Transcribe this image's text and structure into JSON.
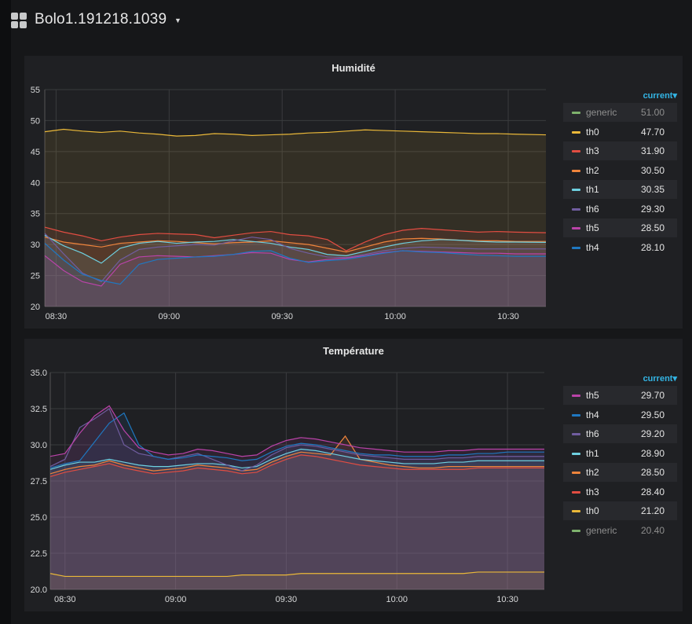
{
  "dashboard": {
    "title": "Bolo1.191218.1039"
  },
  "panels": [
    {
      "title": "Humidité",
      "legend_sort_label": "current",
      "legend": [
        {
          "name": "generic",
          "value": "51.00",
          "color": "#7eb26d"
        },
        {
          "name": "th0",
          "value": "47.70",
          "color": "#eab839"
        },
        {
          "name": "th3",
          "value": "31.90",
          "color": "#e24d42"
        },
        {
          "name": "th2",
          "value": "30.50",
          "color": "#ef843c"
        },
        {
          "name": "th1",
          "value": "30.35",
          "color": "#6ed0e0"
        },
        {
          "name": "th6",
          "value": "29.30",
          "color": "#705da0"
        },
        {
          "name": "th5",
          "value": "28.50",
          "color": "#ba43a9"
        },
        {
          "name": "th4",
          "value": "28.10",
          "color": "#1f78c1"
        }
      ]
    },
    {
      "title": "Température",
      "legend_sort_label": "current",
      "legend": [
        {
          "name": "th5",
          "value": "29.70",
          "color": "#ba43a9"
        },
        {
          "name": "th4",
          "value": "29.50",
          "color": "#1f78c1"
        },
        {
          "name": "th6",
          "value": "29.20",
          "color": "#705da0"
        },
        {
          "name": "th1",
          "value": "28.90",
          "color": "#6ed0e0"
        },
        {
          "name": "th2",
          "value": "28.50",
          "color": "#ef843c"
        },
        {
          "name": "th3",
          "value": "28.40",
          "color": "#e24d42"
        },
        {
          "name": "th0",
          "value": "21.20",
          "color": "#eab839"
        },
        {
          "name": "generic",
          "value": "20.40",
          "color": "#7eb26d"
        }
      ]
    }
  ],
  "chart_data": [
    {
      "type": "area",
      "title": "Humidité",
      "x_ticks": [
        "08:30",
        "09:00",
        "09:30",
        "10:00",
        "10:30"
      ],
      "x_tick_minutes": [
        30,
        60,
        90,
        120,
        150
      ],
      "x_range_minutes": [
        27,
        160
      ],
      "y_ticks": [
        "20",
        "25",
        "30",
        "35",
        "40",
        "45",
        "50",
        "55"
      ],
      "ylim": [
        20,
        55
      ],
      "x": [
        27,
        32,
        37,
        42,
        47,
        52,
        57,
        62,
        67,
        72,
        77,
        82,
        87,
        92,
        97,
        102,
        107,
        112,
        117,
        122,
        127,
        132,
        137,
        142,
        147,
        152,
        160
      ],
      "series": [
        {
          "name": "th0",
          "color": "#eab839",
          "values": [
            48.2,
            48.6,
            48.3,
            48.1,
            48.3,
            48.0,
            47.8,
            47.5,
            47.6,
            47.9,
            47.8,
            47.6,
            47.7,
            47.8,
            48.0,
            48.1,
            48.3,
            48.5,
            48.4,
            48.3,
            48.2,
            48.1,
            48.0,
            47.9,
            47.9,
            47.8,
            47.7
          ]
        },
        {
          "name": "th3",
          "color": "#e24d42",
          "values": [
            32.8,
            32.0,
            31.4,
            30.6,
            31.2,
            31.6,
            31.8,
            31.7,
            31.6,
            31.1,
            31.5,
            31.9,
            32.1,
            31.6,
            31.4,
            30.8,
            29.0,
            30.4,
            31.6,
            32.3,
            32.6,
            32.4,
            32.2,
            32.0,
            32.1,
            32.0,
            31.9
          ]
        },
        {
          "name": "th2",
          "color": "#ef843c",
          "values": [
            31.2,
            30.4,
            30.0,
            29.6,
            30.2,
            30.4,
            30.6,
            30.5,
            30.3,
            30.1,
            30.3,
            30.4,
            30.6,
            30.3,
            30.0,
            29.4,
            28.8,
            29.6,
            30.4,
            30.9,
            31.0,
            30.9,
            30.7,
            30.6,
            30.6,
            30.5,
            30.5
          ]
        },
        {
          "name": "th1",
          "color": "#6ed0e0",
          "values": [
            31.5,
            29.8,
            28.6,
            27.0,
            29.4,
            30.2,
            30.5,
            30.2,
            30.4,
            30.5,
            30.8,
            30.5,
            30.2,
            29.6,
            29.2,
            28.4,
            28.2,
            28.9,
            29.6,
            30.2,
            30.6,
            30.8,
            30.7,
            30.5,
            30.4,
            30.4,
            30.35
          ]
        },
        {
          "name": "th6",
          "color": "#705da0",
          "values": [
            31.8,
            28.5,
            25.4,
            24.0,
            27.5,
            29.2,
            29.6,
            29.8,
            30.0,
            29.9,
            30.6,
            31.2,
            30.8,
            29.4,
            28.6,
            28.0,
            27.9,
            28.4,
            29.0,
            29.4,
            29.6,
            29.5,
            29.4,
            29.3,
            29.3,
            29.3,
            29.3
          ]
        },
        {
          "name": "th5",
          "color": "#ba43a9",
          "values": [
            28.2,
            25.8,
            24.0,
            23.3,
            26.8,
            28.0,
            28.2,
            28.1,
            28.0,
            28.2,
            28.4,
            28.7,
            28.6,
            27.6,
            27.2,
            27.6,
            27.8,
            28.2,
            28.7,
            29.0,
            28.9,
            28.8,
            28.7,
            28.6,
            28.6,
            28.5,
            28.5
          ]
        },
        {
          "name": "th4",
          "color": "#1f78c1",
          "values": [
            30.2,
            27.5,
            25.2,
            24.2,
            23.6,
            26.8,
            27.6,
            27.8,
            28.0,
            28.1,
            28.4,
            28.9,
            29.0,
            27.8,
            27.1,
            27.4,
            27.6,
            28.1,
            28.6,
            29.0,
            28.8,
            28.7,
            28.5,
            28.3,
            28.2,
            28.1,
            28.1
          ]
        }
      ]
    },
    {
      "type": "area",
      "title": "Température",
      "x_ticks": [
        "08:30",
        "09:00",
        "09:30",
        "10:00",
        "10:30"
      ],
      "x_tick_minutes": [
        30,
        60,
        90,
        120,
        150
      ],
      "x_range_minutes": [
        26,
        160
      ],
      "y_ticks": [
        "20.0",
        "22.5",
        "25.0",
        "27.5",
        "30.0",
        "32.5",
        "35.0"
      ],
      "ylim": [
        20,
        35
      ],
      "x": [
        26,
        30,
        34,
        38,
        42,
        46,
        50,
        54,
        58,
        62,
        66,
        70,
        74,
        78,
        82,
        86,
        90,
        94,
        98,
        102,
        106,
        110,
        114,
        118,
        122,
        126,
        130,
        134,
        138,
        142,
        146,
        150,
        154,
        160
      ],
      "series": [
        {
          "name": "th0",
          "color": "#eab839",
          "values": [
            21.1,
            20.9,
            20.9,
            20.9,
            20.9,
            20.9,
            20.9,
            20.9,
            20.9,
            20.9,
            20.9,
            20.9,
            20.9,
            21.0,
            21.0,
            21.0,
            21.0,
            21.1,
            21.1,
            21.1,
            21.1,
            21.1,
            21.1,
            21.1,
            21.1,
            21.1,
            21.1,
            21.1,
            21.1,
            21.2,
            21.2,
            21.2,
            21.2,
            21.2
          ]
        },
        {
          "name": "th3",
          "color": "#e24d42",
          "values": [
            27.8,
            28.1,
            28.3,
            28.5,
            28.7,
            28.4,
            28.2,
            28.0,
            28.1,
            28.2,
            28.4,
            28.3,
            28.2,
            28.0,
            28.1,
            28.6,
            29.0,
            29.3,
            29.2,
            29.0,
            28.8,
            28.6,
            28.5,
            28.4,
            28.3,
            28.3,
            28.3,
            28.3,
            28.3,
            28.4,
            28.4,
            28.4,
            28.4,
            28.4
          ]
        },
        {
          "name": "th2",
          "color": "#ef843c",
          "values": [
            28.0,
            28.3,
            28.5,
            28.6,
            28.9,
            28.6,
            28.4,
            28.2,
            28.3,
            28.4,
            28.6,
            28.5,
            28.4,
            28.2,
            28.3,
            28.8,
            29.2,
            29.5,
            29.4,
            29.3,
            30.6,
            29.0,
            28.8,
            28.6,
            28.5,
            28.4,
            28.4,
            28.5,
            28.5,
            28.5,
            28.5,
            28.5,
            28.5,
            28.5
          ]
        },
        {
          "name": "th1",
          "color": "#6ed0e0",
          "values": [
            28.3,
            28.6,
            28.8,
            28.8,
            29.0,
            28.8,
            28.6,
            28.5,
            28.5,
            28.6,
            28.7,
            28.7,
            28.6,
            28.4,
            28.5,
            29.0,
            29.4,
            29.7,
            29.6,
            29.4,
            29.2,
            29.0,
            28.9,
            28.8,
            28.7,
            28.7,
            28.7,
            28.8,
            28.8,
            28.9,
            28.9,
            28.9,
            28.9,
            28.9
          ]
        },
        {
          "name": "th6",
          "color": "#705da0",
          "values": [
            28.5,
            29.0,
            31.2,
            31.8,
            32.5,
            30.0,
            29.4,
            29.2,
            29.0,
            29.2,
            29.4,
            29.0,
            28.6,
            28.2,
            28.6,
            29.3,
            29.8,
            30.0,
            29.9,
            29.7,
            29.5,
            29.3,
            29.2,
            29.1,
            29.0,
            29.0,
            29.0,
            29.1,
            29.1,
            29.2,
            29.2,
            29.2,
            29.2,
            29.2
          ]
        },
        {
          "name": "th4",
          "color": "#1f78c1",
          "values": [
            28.4,
            28.7,
            28.9,
            30.2,
            31.5,
            32.2,
            30.0,
            29.2,
            29.0,
            29.1,
            29.3,
            29.2,
            29.1,
            28.9,
            29.0,
            29.5,
            29.9,
            30.1,
            30.0,
            29.8,
            29.6,
            29.4,
            29.3,
            29.3,
            29.2,
            29.2,
            29.2,
            29.3,
            29.3,
            29.4,
            29.4,
            29.5,
            29.5,
            29.5
          ]
        },
        {
          "name": "th5",
          "color": "#ba43a9",
          "values": [
            29.2,
            29.4,
            30.8,
            32.0,
            32.7,
            31.0,
            29.8,
            29.5,
            29.3,
            29.4,
            29.7,
            29.6,
            29.4,
            29.2,
            29.3,
            29.9,
            30.3,
            30.5,
            30.4,
            30.2,
            30.0,
            29.8,
            29.7,
            29.6,
            29.5,
            29.5,
            29.5,
            29.6,
            29.6,
            29.7,
            29.7,
            29.7,
            29.7,
            29.7
          ]
        }
      ]
    }
  ]
}
